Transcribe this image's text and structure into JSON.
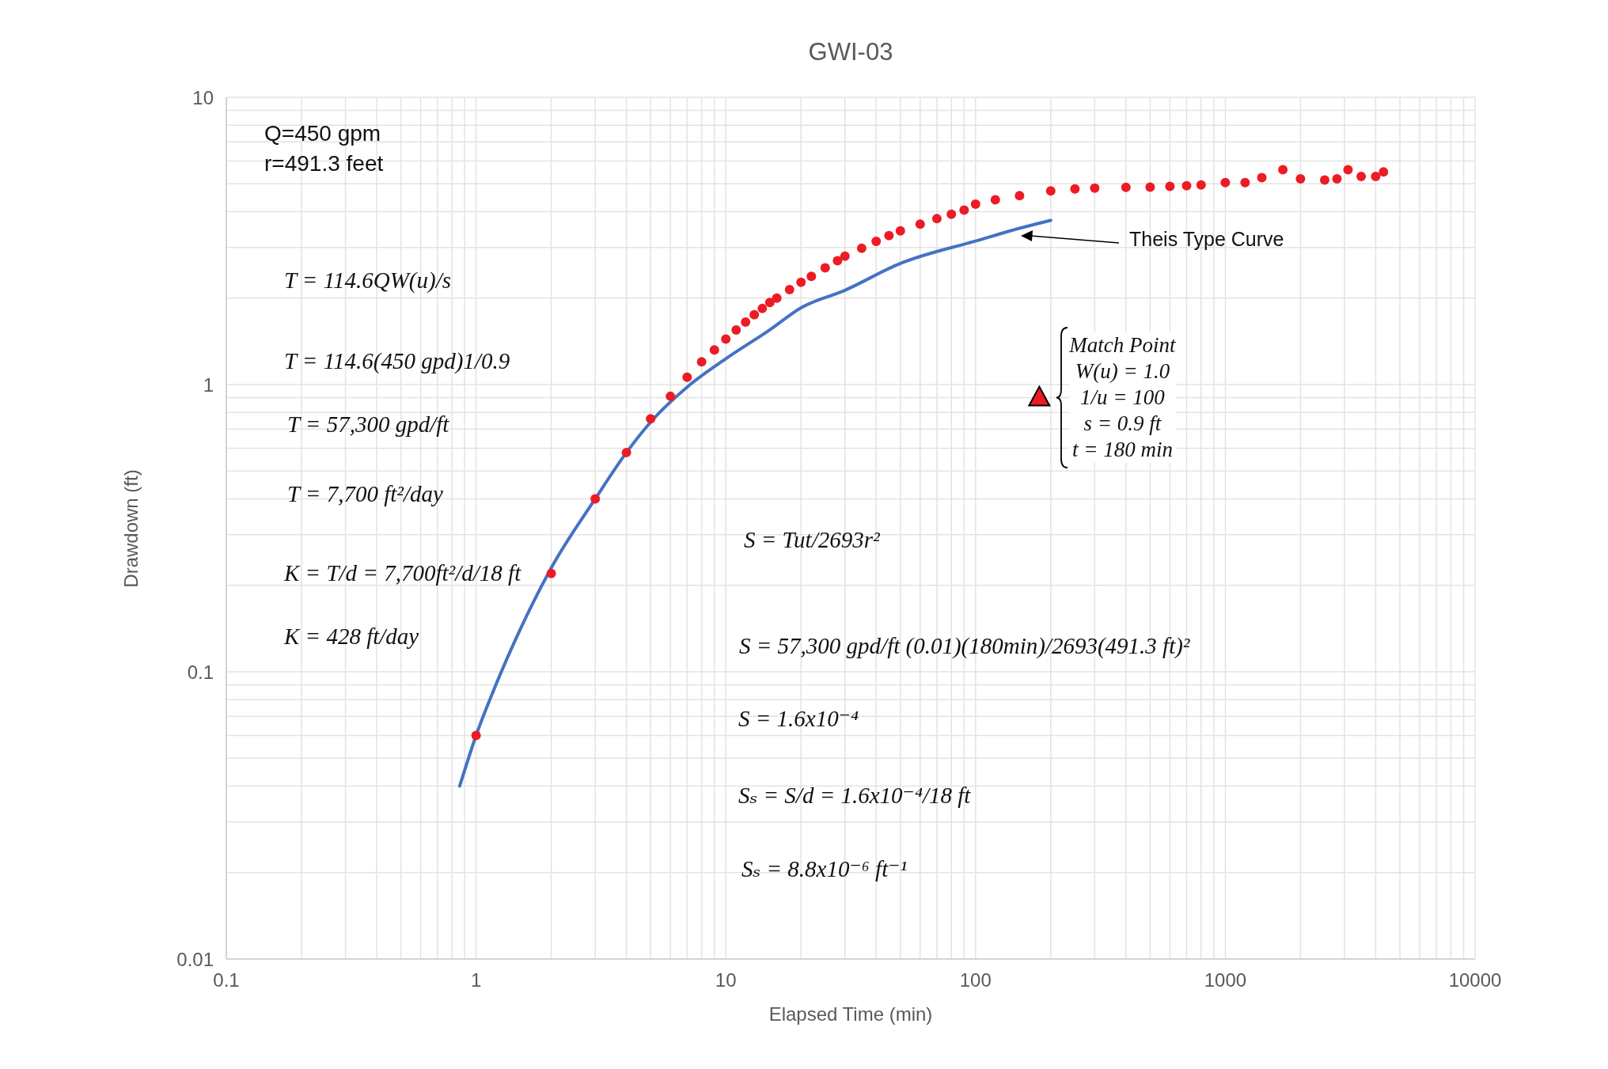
{
  "chart_data": {
    "type": "scatter",
    "title": "GWI-03",
    "xlabel": "Elapsed Time (min)",
    "ylabel": "Drawdown (ft)",
    "log": "xy",
    "grid": true,
    "xlim": [
      0.1,
      10000
    ],
    "xticks": [
      0.1,
      1,
      10,
      100,
      1000,
      10000
    ],
    "ylim": [
      0.01,
      10
    ],
    "yticks": [
      0.01,
      0.1,
      1,
      10
    ],
    "series": [
      {
        "marker": "circle",
        "color": "#ed1c24",
        "x": [
          1,
          2,
          3,
          4,
          5,
          6,
          7,
          8,
          9,
          10,
          11,
          12,
          13,
          14,
          15,
          16,
          18,
          20,
          22,
          25,
          28,
          30,
          35,
          40,
          45,
          50,
          60,
          70,
          80,
          90,
          100,
          120,
          150,
          200,
          250,
          300,
          400,
          500,
          600,
          700,
          800,
          1000,
          1200,
          1400,
          1700,
          2000,
          2500,
          2800,
          3100,
          3500,
          4000,
          4300
        ],
        "values": [
          0.06,
          0.22,
          0.4,
          0.58,
          0.76,
          0.91,
          1.06,
          1.2,
          1.32,
          1.44,
          1.55,
          1.65,
          1.75,
          1.84,
          1.93,
          2.0,
          2.14,
          2.27,
          2.38,
          2.55,
          2.7,
          2.8,
          2.98,
          3.15,
          3.3,
          3.43,
          3.62,
          3.78,
          3.92,
          4.05,
          4.25,
          4.4,
          4.55,
          4.72,
          4.8,
          4.83,
          4.86,
          4.87,
          4.9,
          4.92,
          4.95,
          5.05,
          5.05,
          5.25,
          5.6,
          5.2,
          5.15,
          5.2,
          5.6,
          5.3,
          5.3,
          5.5
        ]
      },
      {
        "type": "line",
        "marker": "none",
        "line_style": "solid",
        "color": "#4472c4",
        "x": [
          0.86,
          1,
          1.2,
          1.5,
          2,
          3,
          4,
          5,
          7,
          10,
          15,
          20,
          30,
          50,
          100,
          150,
          200
        ],
        "values": [
          0.04,
          0.06,
          0.09,
          0.14,
          0.23,
          0.4,
          0.58,
          0.74,
          0.98,
          1.23,
          1.55,
          1.85,
          2.13,
          2.64,
          3.16,
          3.5,
          3.73
        ]
      },
      {
        "marker": "triangle",
        "color": "#ed1c24",
        "x": [
          180
        ],
        "values": [
          0.9
        ]
      }
    ],
    "annotations": [
      "Q=450 gpm",
      "r=491.3 feet",
      "T = 114.6QW(u)/s",
      "T = 114.6(450 gpd)1/0.9",
      "T = 57,300 gpd/ft",
      "T = 7,700 ft²/day",
      "K = T/d = 7,700ft²/d/18 ft",
      "K = 428 ft/day",
      "S = Tut/2693r²",
      "S = 57,300 gpd/ft (0.01)(180min)/2693(491.3 ft)²",
      "S = 1.6x10⁻⁴",
      "Sₛ = S/d = 1.6x10⁻⁴/18 ft",
      "Sₛ = 8.8x10⁻⁶ ft⁻¹",
      {
        "text": "Match Point\nW(u) = 1.0\n1/u = 100\ns = 0.9 ft\nt = 180 min",
        "x": 180,
        "y": 0.9
      },
      "Theis Type Curve"
    ]
  }
}
